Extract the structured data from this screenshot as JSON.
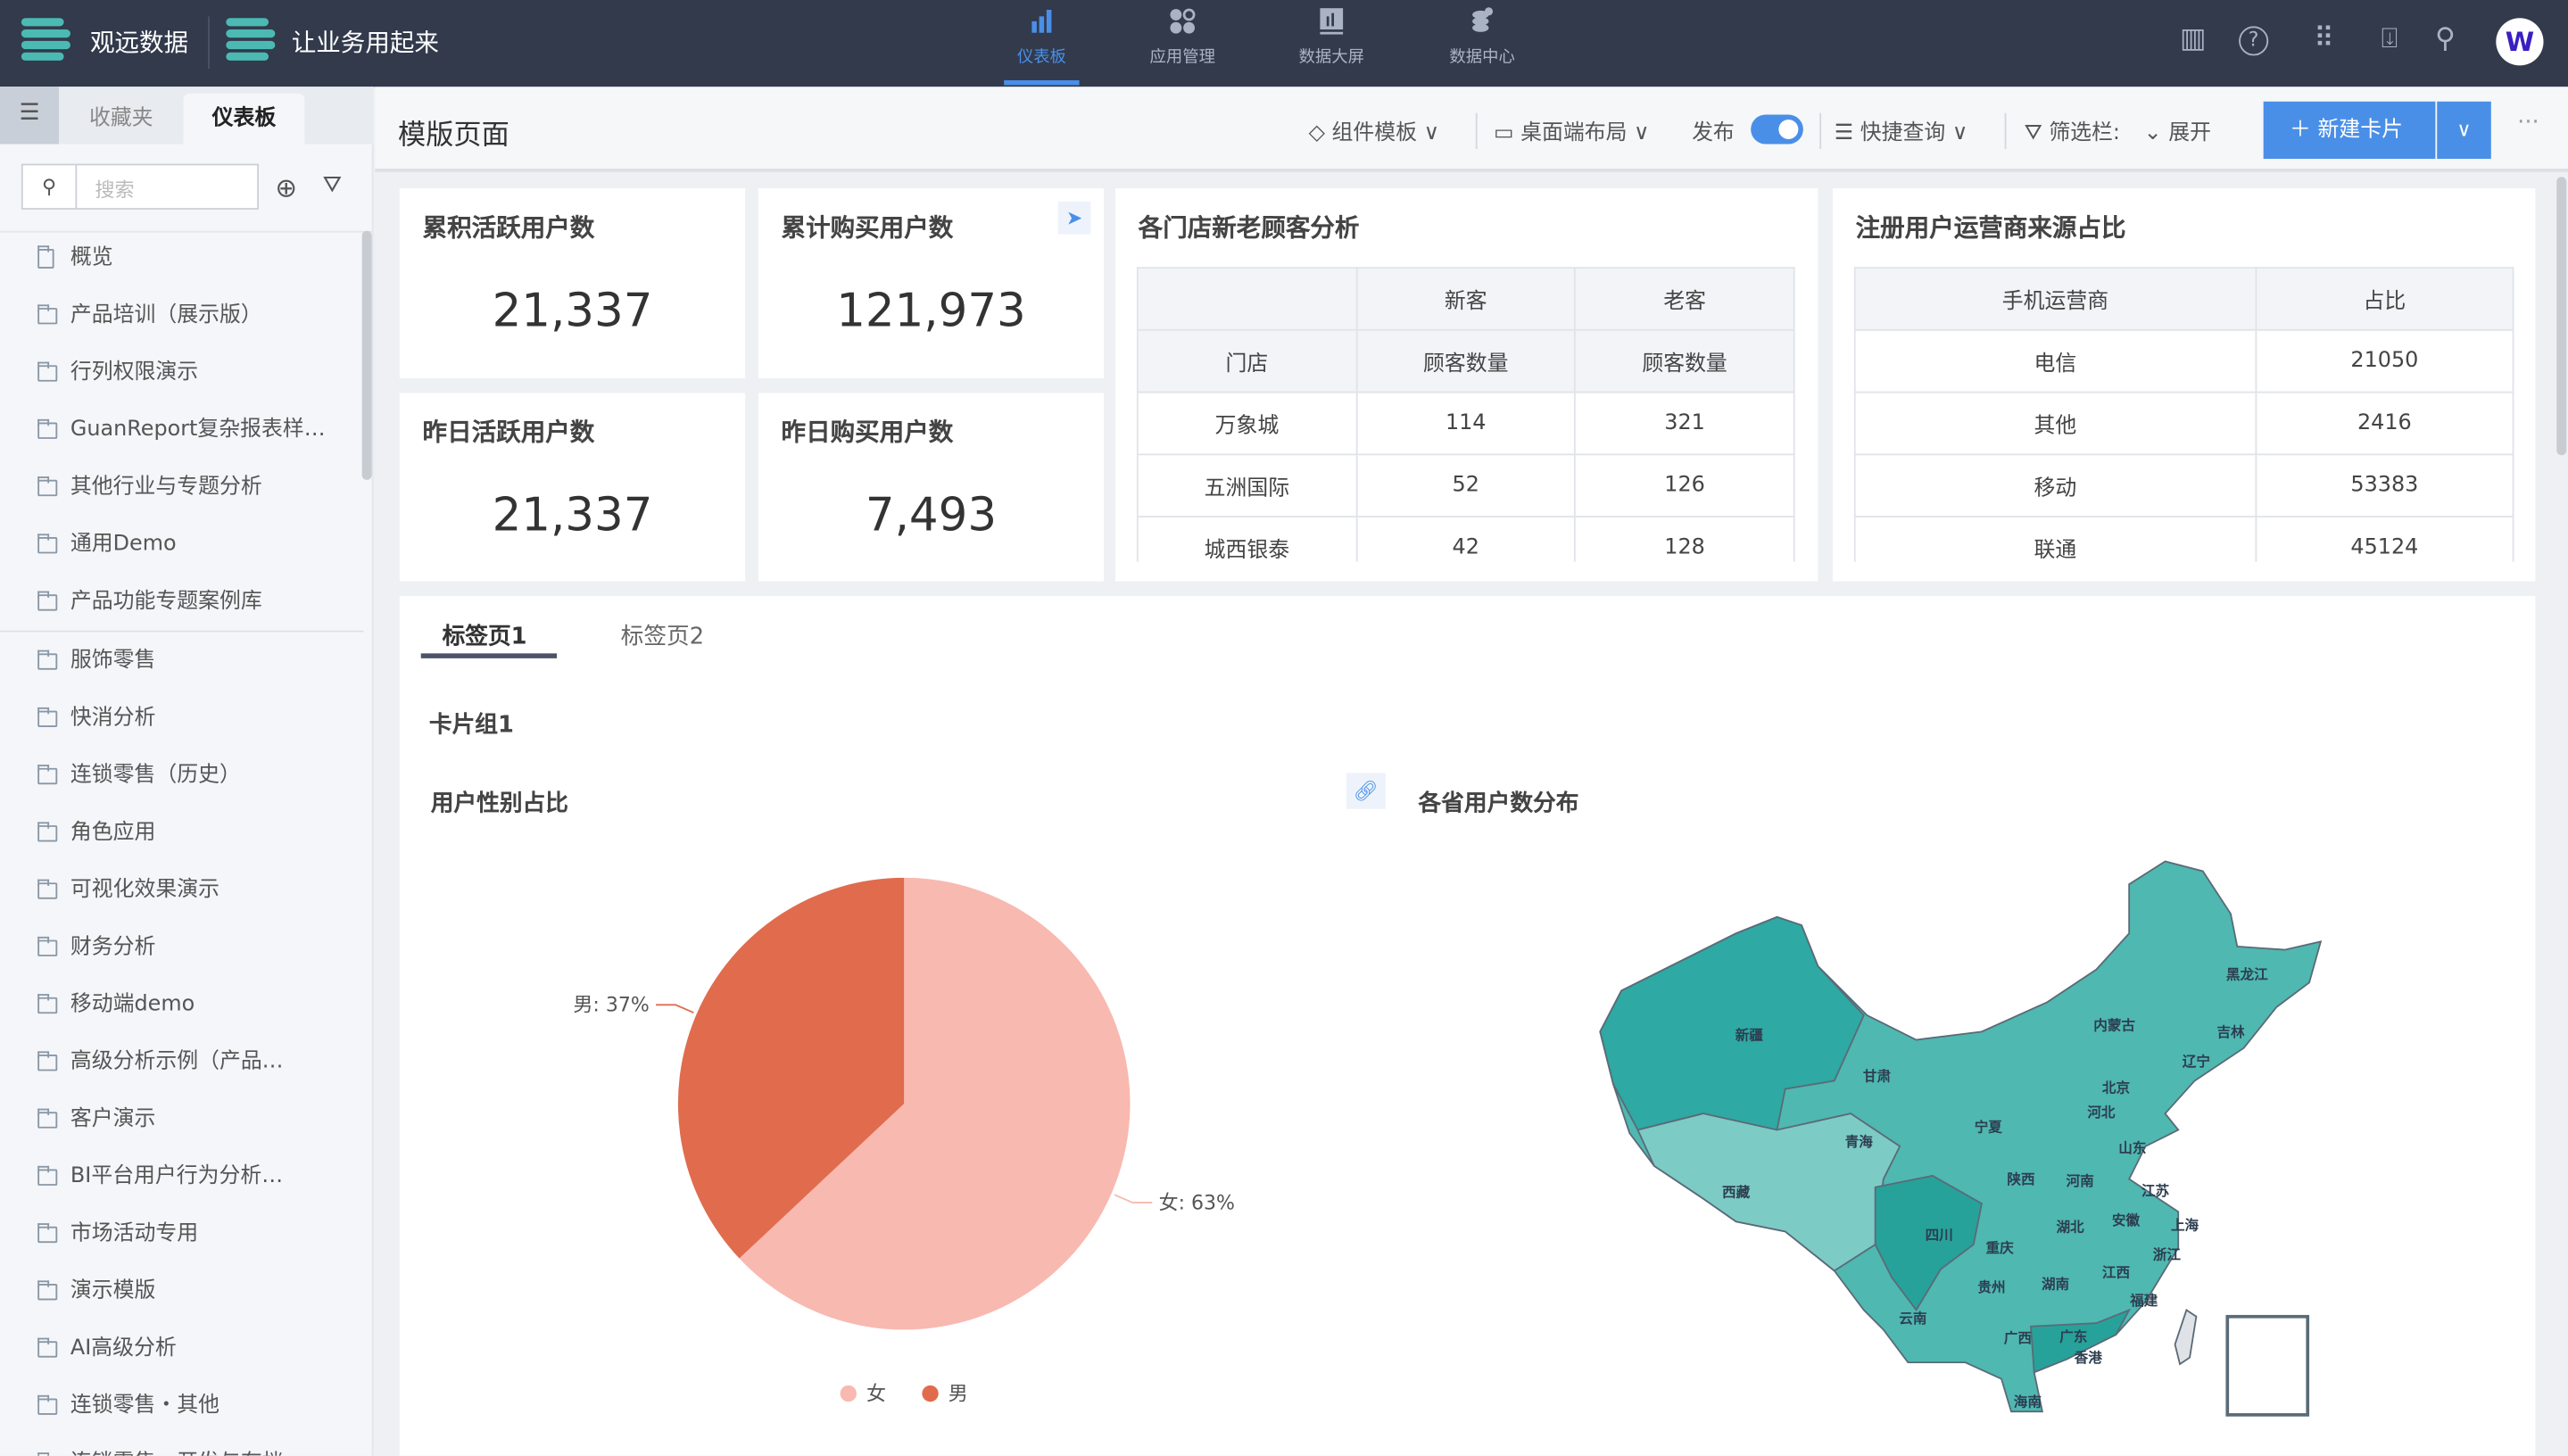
{
  "topbar": {
    "brand": "观远数据",
    "slogan": "让业务用起来",
    "nav": [
      {
        "label": "仪表板",
        "icon": "bar-chart-icon",
        "active": true
      },
      {
        "label": "应用管理",
        "icon": "apps-icon"
      },
      {
        "label": "数据大屏",
        "icon": "screen-icon"
      },
      {
        "label": "数据中心",
        "icon": "database-icon"
      }
    ],
    "right_icons": [
      "report-icon",
      "help-icon",
      "grid-icon",
      "inbox-icon",
      "search-icon",
      "avatar"
    ]
  },
  "sidebar": {
    "tabs": [
      "收藏夹",
      "仪表板"
    ],
    "active_tab": "仪表板",
    "search_placeholder": "搜索",
    "items": [
      "概览",
      "产品培训（展示版）",
      "行列权限演示",
      "GuanReport复杂报表样…",
      "其他行业与专题分析",
      "通用Demo",
      "产品功能专题案例库",
      "服饰零售",
      "快消分析",
      "连锁零售（历史）",
      "角色应用",
      "可视化效果演示",
      "财务分析",
      "移动端demo",
      "高级分析示例（产品…",
      "客户演示",
      "BI平台用户行为分析…",
      "市场活动专用",
      "演示模版",
      "AI高级分析",
      "连锁零售・其他",
      "连锁零售・开发与存档"
    ]
  },
  "header": {
    "title": "模版页面",
    "component_template": "组件模板",
    "layout": "桌面端布局",
    "publish": "发布",
    "publish_on": true,
    "quick_query": "快捷查询",
    "filter_bar": "筛选栏:",
    "expand": "展开",
    "new_card": "新建卡片"
  },
  "kpis": [
    {
      "title": "累积活跃用户数",
      "value": "21,337"
    },
    {
      "title": "累计购买用户数",
      "value": "121,973"
    },
    {
      "title": "昨日活跃用户数",
      "value": "21,337"
    },
    {
      "title": "昨日购买用户数",
      "value": "7,493"
    }
  ],
  "store_table": {
    "title": "各门店新老顾客分析",
    "header1": [
      "",
      "新客",
      "老客"
    ],
    "header2": [
      "门店",
      "顾客数量",
      "顾客数量"
    ],
    "rows": [
      [
        "万象城",
        "114",
        "321"
      ],
      [
        "五洲国际",
        "52",
        "126"
      ],
      [
        "城西银泰",
        "42",
        "128"
      ]
    ]
  },
  "carrier_table": {
    "title": "注册用户运营商来源占比",
    "header": [
      "手机运营商",
      "占比"
    ],
    "rows": [
      [
        "电信",
        "21050"
      ],
      [
        "其他",
        "2416"
      ],
      [
        "移动",
        "53383"
      ],
      [
        "联通",
        "45124"
      ]
    ]
  },
  "tabs": [
    "标签页1",
    "标签页2"
  ],
  "active_tab": "标签页1",
  "card_group": "卡片组1",
  "chart_data": [
    {
      "type": "pie",
      "title": "用户性别占比",
      "categories": [
        "女",
        "男"
      ],
      "values": [
        63,
        37
      ],
      "labels": [
        "女: 63%",
        "男: 37%"
      ],
      "colors": [
        "#f8b9b0",
        "#e06c4d"
      ],
      "legend": "bottom"
    },
    {
      "type": "map",
      "title": "各省用户数分布",
      "regions": [
        "新疆",
        "西藏",
        "青海",
        "甘肃",
        "内蒙古",
        "黑龙江",
        "吉林",
        "辽宁",
        "北京",
        "河北",
        "宁夏",
        "山东",
        "陕西",
        "河南",
        "江苏",
        "四川",
        "湖北",
        "安徽",
        "上海",
        "重庆",
        "浙江",
        "贵州",
        "湖南",
        "江西",
        "福建",
        "云南",
        "广西",
        "广东",
        "香港",
        "海南"
      ],
      "color": "#4fb8b0"
    }
  ]
}
